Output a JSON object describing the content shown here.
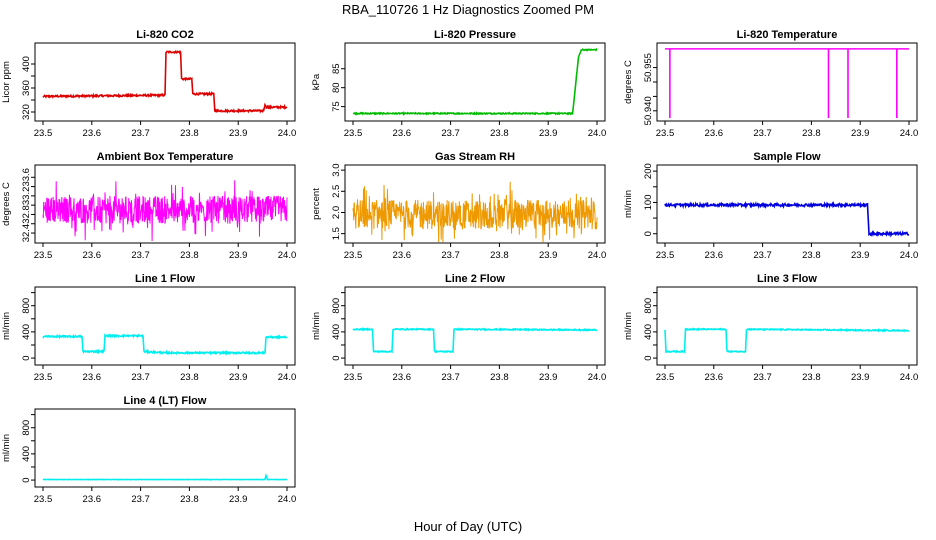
{
  "figure": {
    "title": "RBA_110726  1 Hz Diagnostics Zoomed PM",
    "xlabel": "Hour of Day (UTC)"
  },
  "chart_data": [
    {
      "type": "line",
      "title": "Li-820 CO2",
      "ylabel": "Licor ppm",
      "color": "#dd0000",
      "xlim": [
        23.5,
        24.0
      ],
      "ylim": [
        310,
        430
      ],
      "xticks": [
        "23.5",
        "23.6",
        "23.7",
        "23.8",
        "23.9",
        "24.0"
      ],
      "yticks": [
        320,
        340,
        360,
        380,
        400
      ],
      "ytick_labels": [
        "320",
        "",
        "360",
        "",
        "400"
      ],
      "segments": [
        [
          23.5,
          346
        ],
        [
          23.75,
          348
        ],
        [
          23.752,
          420
        ],
        [
          23.782,
          420
        ],
        [
          23.784,
          375
        ],
        [
          23.805,
          375
        ],
        [
          23.807,
          350
        ],
        [
          23.85,
          350
        ],
        [
          23.852,
          322
        ],
        [
          23.952,
          322
        ],
        [
          23.955,
          332
        ],
        [
          23.958,
          328
        ],
        [
          24.0,
          328
        ]
      ],
      "noise": 1.5
    },
    {
      "type": "line",
      "title": "Li-820 Pressure",
      "ylabel": "kPa",
      "color": "#00bb00",
      "xlim": [
        23.5,
        24.0
      ],
      "ylim": [
        72,
        91
      ],
      "xticks": [
        "23.5",
        "23.6",
        "23.7",
        "23.8",
        "23.9",
        "24.0"
      ],
      "yticks": [
        75,
        80,
        85
      ],
      "ytick_labels": [
        "75",
        "80",
        "85"
      ],
      "segments": [
        [
          23.5,
          73.2
        ],
        [
          23.95,
          73.2
        ],
        [
          23.962,
          88
        ],
        [
          23.968,
          90
        ],
        [
          24.0,
          90
        ]
      ],
      "noise": 0.15
    },
    {
      "type": "line",
      "title": "Li-820 Temperature",
      "ylabel": "degrees C",
      "color": "#ff00ff",
      "xlim": [
        23.5,
        24.0
      ],
      "ylim": [
        50.9375,
        50.9625
      ],
      "xticks": [
        "23.5",
        "23.6",
        "23.7",
        "23.8",
        "23.9",
        "24.0"
      ],
      "yticks": [
        50.94,
        50.945,
        50.95,
        50.955
      ],
      "ytick_labels": [
        "50.940",
        "",
        "",
        "50.955"
      ],
      "baseline": 50.9615,
      "spikes": [
        [
          23.51,
          50.9375
        ],
        [
          23.835,
          50.9375
        ],
        [
          23.875,
          50.9375
        ],
        [
          23.975,
          50.9375
        ]
      ]
    },
    {
      "type": "line",
      "title": "Ambient Box Temperature",
      "ylabel": "degrees C",
      "color": "#ff00ff",
      "xlim": [
        23.5,
        24.0
      ],
      "ylim": [
        32.25,
        33.8
      ],
      "xticks": [
        "23.5",
        "23.6",
        "23.7",
        "23.8",
        "23.9",
        "24.0"
      ],
      "yticks": [
        32.4,
        32.6,
        32.8,
        33.0,
        33.2,
        33.4,
        33.6
      ],
      "ytick_labels": [
        "32.4",
        "",
        "32.8",
        "",
        "33.2",
        "",
        "33.6"
      ],
      "segments": [
        [
          23.5,
          32.9
        ],
        [
          24.0,
          32.9
        ]
      ],
      "noise": 0.3,
      "dense": true
    },
    {
      "type": "line",
      "title": "Gas Stream RH",
      "ylabel": "percent",
      "color": "#ee9900",
      "xlim": [
        23.5,
        24.0
      ],
      "ylim": [
        1.35,
        3.05
      ],
      "xticks": [
        "23.5",
        "23.6",
        "23.7",
        "23.8",
        "23.9",
        "24.0"
      ],
      "yticks": [
        1.5,
        2.0,
        2.5,
        3.0
      ],
      "ytick_labels": [
        "1.5",
        "2.0",
        "2.5",
        "3.0"
      ],
      "segments": [
        [
          23.5,
          1.95
        ],
        [
          24.0,
          1.95
        ]
      ],
      "noise": 0.35,
      "dense": true
    },
    {
      "type": "line",
      "title": "Sample Flow",
      "ylabel": "ml/min",
      "color": "#0000dd",
      "xlim": [
        23.5,
        24.0
      ],
      "ylim": [
        -20,
        210
      ],
      "xticks": [
        "23.5",
        "23.6",
        "23.7",
        "23.8",
        "23.9",
        "24.0"
      ],
      "yticks": [
        0,
        50,
        100,
        150,
        200
      ],
      "ytick_labels": [
        "0",
        "",
        "100",
        "",
        "200"
      ],
      "segments": [
        [
          23.5,
          92
        ],
        [
          23.915,
          92
        ],
        [
          23.918,
          0
        ],
        [
          24.0,
          0
        ]
      ],
      "noise": 4
    },
    {
      "type": "line",
      "title": "Line 1 Flow",
      "ylabel": "ml/min",
      "color": "#00eeee",
      "xlim": [
        23.5,
        24.0
      ],
      "ylim": [
        -60,
        1040
      ],
      "xticks": [
        "23.5",
        "23.6",
        "23.7",
        "23.8",
        "23.9",
        "24.0"
      ],
      "yticks": [
        0,
        200,
        400,
        600,
        800,
        1000
      ],
      "ytick_labels": [
        "0",
        "",
        "400",
        "",
        "800",
        ""
      ],
      "segments": [
        [
          23.5,
          330
        ],
        [
          23.58,
          330
        ],
        [
          23.582,
          100
        ],
        [
          23.625,
          100
        ],
        [
          23.627,
          340
        ],
        [
          23.705,
          340
        ],
        [
          23.707,
          100
        ],
        [
          23.752,
          80
        ],
        [
          23.955,
          80
        ],
        [
          23.957,
          320
        ],
        [
          24.0,
          320
        ]
      ],
      "noise": 12
    },
    {
      "type": "line",
      "title": "Line 2 Flow",
      "ylabel": "ml/min",
      "color": "#00eeee",
      "xlim": [
        23.5,
        24.0
      ],
      "ylim": [
        -60,
        1040
      ],
      "xticks": [
        "23.5",
        "23.6",
        "23.7",
        "23.8",
        "23.9",
        "24.0"
      ],
      "yticks": [
        0,
        200,
        400,
        600,
        800,
        1000
      ],
      "ytick_labels": [
        "0",
        "",
        "400",
        "",
        "800",
        ""
      ],
      "segments": [
        [
          23.5,
          440
        ],
        [
          23.54,
          440
        ],
        [
          23.542,
          100
        ],
        [
          23.58,
          100
        ],
        [
          23.582,
          440
        ],
        [
          23.665,
          440
        ],
        [
          23.667,
          100
        ],
        [
          23.705,
          100
        ],
        [
          23.707,
          440
        ],
        [
          24.0,
          430
        ]
      ],
      "noise": 8
    },
    {
      "type": "line",
      "title": "Line 3 Flow",
      "ylabel": "ml/min",
      "color": "#00eeee",
      "xlim": [
        23.5,
        24.0
      ],
      "ylim": [
        -60,
        1040
      ],
      "xticks": [
        "23.5",
        "23.6",
        "23.7",
        "23.8",
        "23.9",
        "24.0"
      ],
      "yticks": [
        0,
        200,
        400,
        600,
        800,
        1000
      ],
      "ytick_labels": [
        "0",
        "",
        "400",
        "",
        "800",
        ""
      ],
      "segments": [
        [
          23.5,
          430
        ],
        [
          23.502,
          100
        ],
        [
          23.54,
          100
        ],
        [
          23.542,
          440
        ],
        [
          23.625,
          440
        ],
        [
          23.627,
          100
        ],
        [
          23.665,
          100
        ],
        [
          23.667,
          440
        ],
        [
          24.0,
          420
        ]
      ],
      "noise": 8
    },
    {
      "type": "line",
      "title": "Line 4 (LT) Flow",
      "ylabel": "ml/min",
      "color": "#00eeee",
      "xlim": [
        23.5,
        24.0
      ],
      "ylim": [
        -60,
        1040
      ],
      "xticks": [
        "23.5",
        "23.6",
        "23.7",
        "23.8",
        "23.9",
        "24.0"
      ],
      "yticks": [
        0,
        200,
        400,
        600,
        800,
        1000
      ],
      "ytick_labels": [
        "0",
        "",
        "400",
        "",
        "800",
        ""
      ],
      "segments": [
        [
          23.5,
          8
        ],
        [
          23.955,
          8
        ],
        [
          23.957,
          70
        ],
        [
          23.96,
          8
        ],
        [
          24.0,
          8
        ]
      ],
      "noise": 2
    }
  ]
}
